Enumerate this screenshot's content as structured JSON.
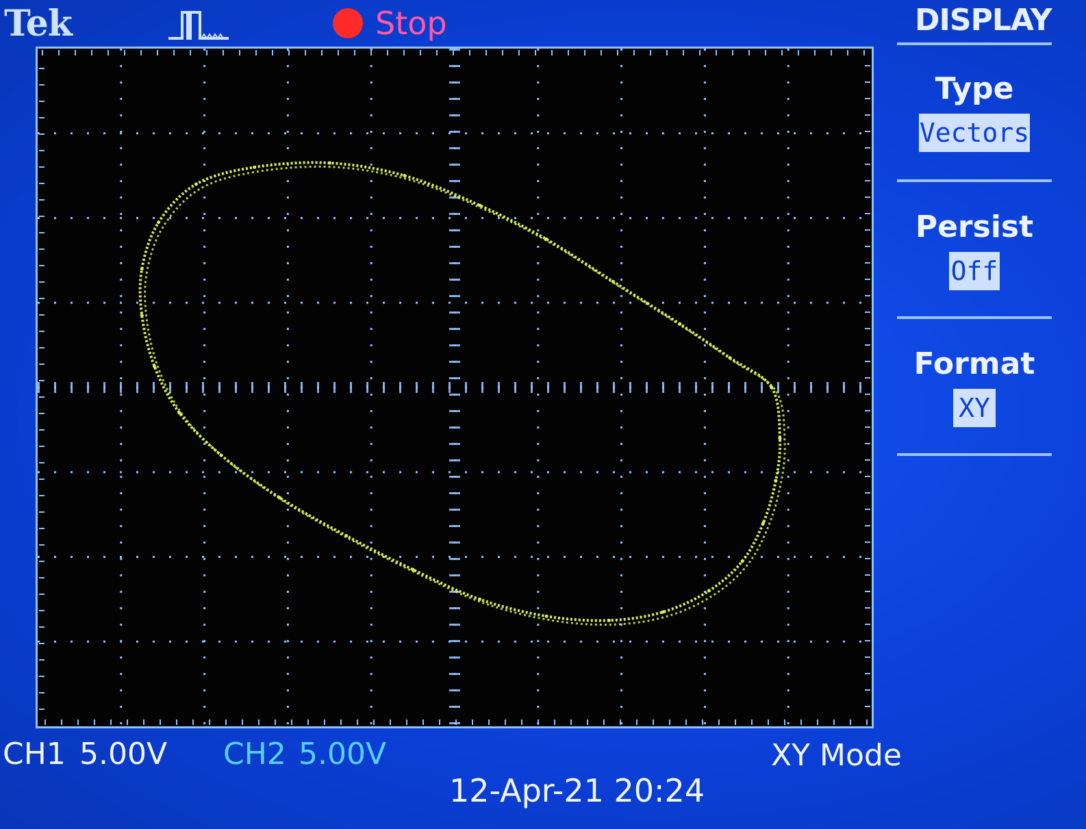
{
  "header": {
    "brand": "Tek",
    "trigger_icon": "pulse-trigger-icon",
    "run_state": "Stop",
    "run_state_color": "#ff2a2a"
  },
  "menu": {
    "title": "DISPLAY",
    "items": [
      {
        "label": "Type",
        "value": "Vectors"
      },
      {
        "label": "Persist",
        "value": "Off"
      },
      {
        "label": "Format",
        "value": "XY"
      }
    ]
  },
  "status": {
    "ch1_label": "CH1",
    "ch1_scale": "5.00V",
    "ch2_label": "CH2",
    "ch2_scale": "5.00V",
    "mode": "XY Mode",
    "datetime": "12-Apr-21 20:24"
  },
  "colors": {
    "trace": "#d7f25a",
    "grid": "#8fc2ff",
    "screen_bg": "#030303",
    "ch2": "#5ad0ff"
  },
  "chart_data": {
    "type": "scatter",
    "title": "",
    "xlabel": "",
    "ylabel": "",
    "xlim": [
      -5,
      5
    ],
    "ylim": [
      -4,
      4
    ],
    "grid": true,
    "x_divisions": 10,
    "y_divisions": 8,
    "series": [
      {
        "points": [
          [
            3.8,
            0.0
          ],
          [
            3.9,
            -0.6
          ],
          [
            3.85,
            -1.1
          ],
          [
            3.7,
            -1.6
          ],
          [
            3.45,
            -2.05
          ],
          [
            3.05,
            -2.4
          ],
          [
            2.5,
            -2.65
          ],
          [
            1.85,
            -2.75
          ],
          [
            1.1,
            -2.7
          ],
          [
            0.3,
            -2.5
          ],
          [
            -0.5,
            -2.15
          ],
          [
            -1.3,
            -1.75
          ],
          [
            -2.1,
            -1.3
          ],
          [
            -2.8,
            -0.8
          ],
          [
            -3.3,
            -0.3
          ],
          [
            -3.6,
            0.25
          ],
          [
            -3.75,
            0.85
          ],
          [
            -3.75,
            1.4
          ],
          [
            -3.55,
            1.95
          ],
          [
            -3.1,
            2.4
          ],
          [
            -2.4,
            2.6
          ],
          [
            -1.5,
            2.65
          ],
          [
            -0.6,
            2.5
          ],
          [
            0.3,
            2.15
          ],
          [
            1.1,
            1.75
          ],
          [
            1.9,
            1.25
          ],
          [
            2.7,
            0.75
          ],
          [
            3.3,
            0.35
          ],
          [
            3.8,
            0.0
          ]
        ]
      }
    ]
  }
}
